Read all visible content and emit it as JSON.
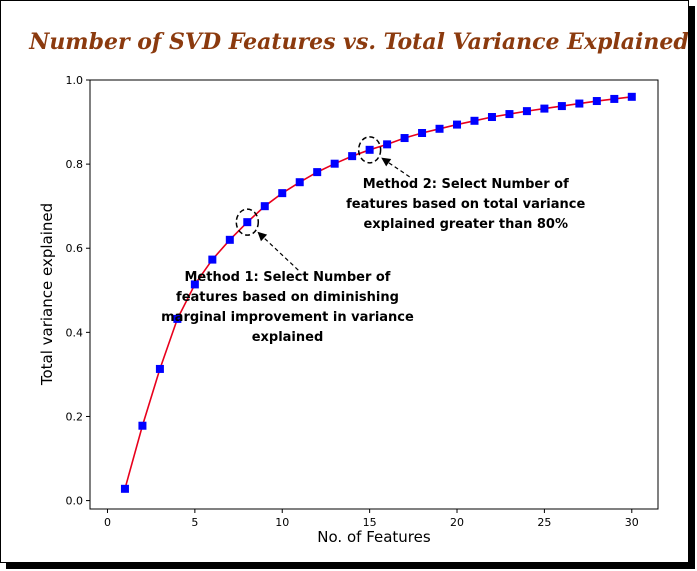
{
  "chart_data": {
    "type": "line",
    "title": "Number of SVD Features vs. Total Variance Explained",
    "xlabel": "No. of Features",
    "ylabel": "Total variance explained",
    "xlim": [
      -1,
      31.5
    ],
    "ylim": [
      -0.02,
      1.0
    ],
    "xticks": [
      0,
      5,
      10,
      15,
      20,
      25,
      30
    ],
    "yticks": [
      0.0,
      0.2,
      0.4,
      0.6,
      0.8,
      1.0
    ],
    "xtick_labels": [
      "0",
      "5",
      "10",
      "15",
      "20",
      "25",
      "30"
    ],
    "ytick_labels": [
      "0.0",
      "0.2",
      "0.4",
      "0.6",
      "0.8",
      "1.0"
    ],
    "grid": false,
    "colors": {
      "line": "#e8001c",
      "marker": "#0000ff",
      "title": "#8b3a0e"
    },
    "series": [
      {
        "x": [
          1,
          2,
          3,
          4,
          5,
          6,
          7,
          8,
          9,
          10,
          11,
          12,
          13,
          14,
          15,
          16,
          17,
          18,
          19,
          20,
          21,
          22,
          23,
          24,
          25,
          26,
          27,
          28,
          29,
          30
        ],
        "values": [
          0.028,
          0.178,
          0.313,
          0.432,
          0.514,
          0.573,
          0.62,
          0.662,
          0.7,
          0.731,
          0.757,
          0.781,
          0.801,
          0.819,
          0.834,
          0.847,
          0.862,
          0.874,
          0.884,
          0.894,
          0.903,
          0.912,
          0.919,
          0.926,
          0.932,
          0.938,
          0.944,
          0.95,
          0.955,
          0.96
        ]
      }
    ],
    "annotations": [
      {
        "id": "method1",
        "target": [
          8,
          0.662
        ],
        "text_x": 10.3,
        "text_lines": [
          "Method 1: Select Number of",
          "features based on diminishing",
          "marginal improvement in variance",
          "explained"
        ]
      },
      {
        "id": "method2",
        "target": [
          15,
          0.834
        ],
        "text_x": 20.5,
        "text_lines": [
          "Method 2: Select Number of",
          "features based on total variance",
          "explained greater than 80%"
        ]
      }
    ]
  }
}
